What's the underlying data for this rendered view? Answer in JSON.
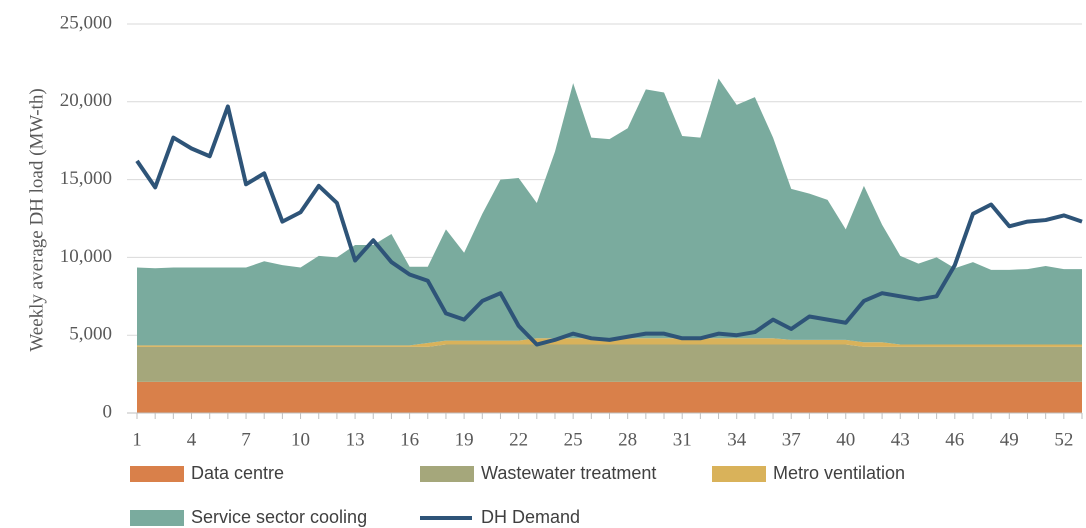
{
  "chart_data": {
    "type": "area",
    "stacked": true,
    "ylabel": "Weekly average DH load (MW-th)",
    "x": [
      1,
      2,
      3,
      4,
      5,
      6,
      7,
      8,
      9,
      10,
      11,
      12,
      13,
      14,
      15,
      16,
      17,
      18,
      19,
      20,
      21,
      22,
      23,
      24,
      25,
      26,
      27,
      28,
      29,
      30,
      31,
      32,
      33,
      34,
      35,
      36,
      37,
      38,
      39,
      40,
      41,
      42,
      43,
      44,
      45,
      46,
      47,
      48,
      49,
      50,
      51,
      52,
      53
    ],
    "xlim": [
      1,
      53
    ],
    "xticks": [
      1,
      4,
      7,
      10,
      13,
      16,
      19,
      22,
      25,
      28,
      31,
      34,
      37,
      40,
      43,
      46,
      49,
      52
    ],
    "ylim": [
      0,
      25000
    ],
    "yticks": [
      0,
      {
        "value": 5000,
        "label": "5,000"
      },
      {
        "value": 10000,
        "label": "10,000"
      },
      {
        "value": 15000,
        "label": "15,000"
      },
      {
        "value": 20000,
        "label": "20,000"
      },
      {
        "value": 25000,
        "label": "25,000"
      }
    ],
    "grid": true,
    "legend": "bottom",
    "series": [
      {
        "name": "Data centre",
        "type": "area",
        "color": "#d9804a",
        "values": [
          2000,
          2000,
          2000,
          2000,
          2000,
          2000,
          2000,
          2000,
          2000,
          2000,
          2000,
          2000,
          2000,
          2000,
          2000,
          2000,
          2000,
          2000,
          2000,
          2000,
          2000,
          2000,
          2000,
          2000,
          2000,
          2000,
          2000,
          2000,
          2000,
          2000,
          2000,
          2000,
          2000,
          2000,
          2000,
          2000,
          2000,
          2000,
          2000,
          2000,
          2000,
          2000,
          2000,
          2000,
          2000,
          2000,
          2000,
          2000,
          2000,
          2000,
          2000,
          2000,
          2000
        ]
      },
      {
        "name": "Wastewater treatment",
        "type": "area",
        "color": "#a5a77b",
        "values": [
          2250,
          2250,
          2250,
          2250,
          2250,
          2250,
          2250,
          2250,
          2250,
          2250,
          2250,
          2250,
          2250,
          2250,
          2250,
          2250,
          2250,
          2400,
          2400,
          2400,
          2400,
          2400,
          2400,
          2400,
          2400,
          2400,
          2400,
          2400,
          2400,
          2400,
          2400,
          2400,
          2400,
          2400,
          2400,
          2400,
          2400,
          2400,
          2400,
          2400,
          2250,
          2250,
          2250,
          2250,
          2250,
          2250,
          2250,
          2250,
          2250,
          2250,
          2250,
          2250,
          2250
        ]
      },
      {
        "name": "Metro ventilation",
        "type": "area",
        "color": "#d9b25a",
        "values": [
          100,
          100,
          100,
          100,
          100,
          100,
          100,
          100,
          100,
          100,
          100,
          100,
          100,
          100,
          100,
          100,
          250,
          250,
          250,
          250,
          250,
          250,
          400,
          400,
          400,
          400,
          400,
          400,
          400,
          400,
          400,
          400,
          400,
          400,
          400,
          400,
          300,
          300,
          300,
          300,
          300,
          300,
          150,
          150,
          150,
          150,
          150,
          150,
          150,
          150,
          150,
          150,
          150
        ]
      },
      {
        "name": "Service sector cooling",
        "type": "area",
        "color": "#7aab9e",
        "values": [
          5000,
          4950,
          5000,
          5000,
          5000,
          5000,
          5000,
          5400,
          5150,
          5000,
          5750,
          5650,
          6450,
          6450,
          7150,
          5050,
          4900,
          7150,
          5650,
          8150,
          10350,
          10450,
          8700,
          12000,
          16400,
          12900,
          12800,
          13500,
          16000,
          15800,
          13000,
          12900,
          16700,
          15000,
          15500,
          12900,
          9700,
          9400,
          9000,
          7100,
          10050,
          7550,
          5700,
          5200,
          5600,
          4900,
          5300,
          4800,
          4800,
          4850,
          5050,
          4850,
          4850
        ]
      },
      {
        "name": "DH Demand",
        "type": "line",
        "color": "#2e5478",
        "values": [
          16200,
          14500,
          17700,
          17000,
          16500,
          19700,
          14700,
          15400,
          12300,
          12900,
          14600,
          13500,
          9800,
          11100,
          9700,
          8900,
          8500,
          6400,
          6000,
          7200,
          7700,
          5600,
          4400,
          4700,
          5100,
          4800,
          4700,
          4900,
          5100,
          5100,
          4800,
          4800,
          5100,
          5000,
          5200,
          6000,
          5400,
          6200,
          6000,
          5800,
          7200,
          7700,
          7500,
          7300,
          7500,
          9500,
          12800,
          13400,
          12000,
          12300,
          12400,
          12700,
          12300
        ]
      }
    ]
  }
}
